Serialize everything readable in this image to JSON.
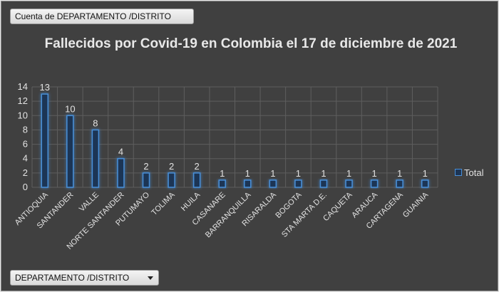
{
  "pivot": {
    "value_field_label": "Cuenta de DEPARTAMENTO /DISTRITO",
    "axis_field_label": "DEPARTAMENTO /DISTRITO"
  },
  "chart_data": {
    "type": "bar",
    "title": "Fallecidos por Covid-19 en Colombia el 17 de diciembre de 2021",
    "xlabel": "",
    "ylabel": "",
    "categories": [
      "ANTIOQUIA",
      "SANTANDER",
      "VALLE",
      "NORTE SANTANDER",
      "PUTUMAYO",
      "TOLIMA",
      "HUILA",
      "CASANARE",
      "BARRANQUILLA",
      "RISARALDA",
      "BOGOTA",
      "STA MARTA D.E.",
      "CAQUETA",
      "ARAUCA",
      "CARTAGENA",
      "GUAINIA"
    ],
    "series": [
      {
        "name": "Total",
        "values": [
          13,
          10,
          8,
          4,
          2,
          2,
          2,
          1,
          1,
          1,
          1,
          1,
          1,
          1,
          1,
          1
        ]
      }
    ],
    "ylim": [
      0,
      14
    ],
    "yticks": [
      0,
      2,
      4,
      6,
      8,
      10,
      12,
      14
    ],
    "grid": true,
    "legend": "right",
    "colors": {
      "bar_fill": "#1c3555",
      "bar_stroke": "#4a90d9",
      "glow": "#6fb3ff",
      "grid": "#5e5e5e",
      "text": "#e2e2e2"
    }
  }
}
